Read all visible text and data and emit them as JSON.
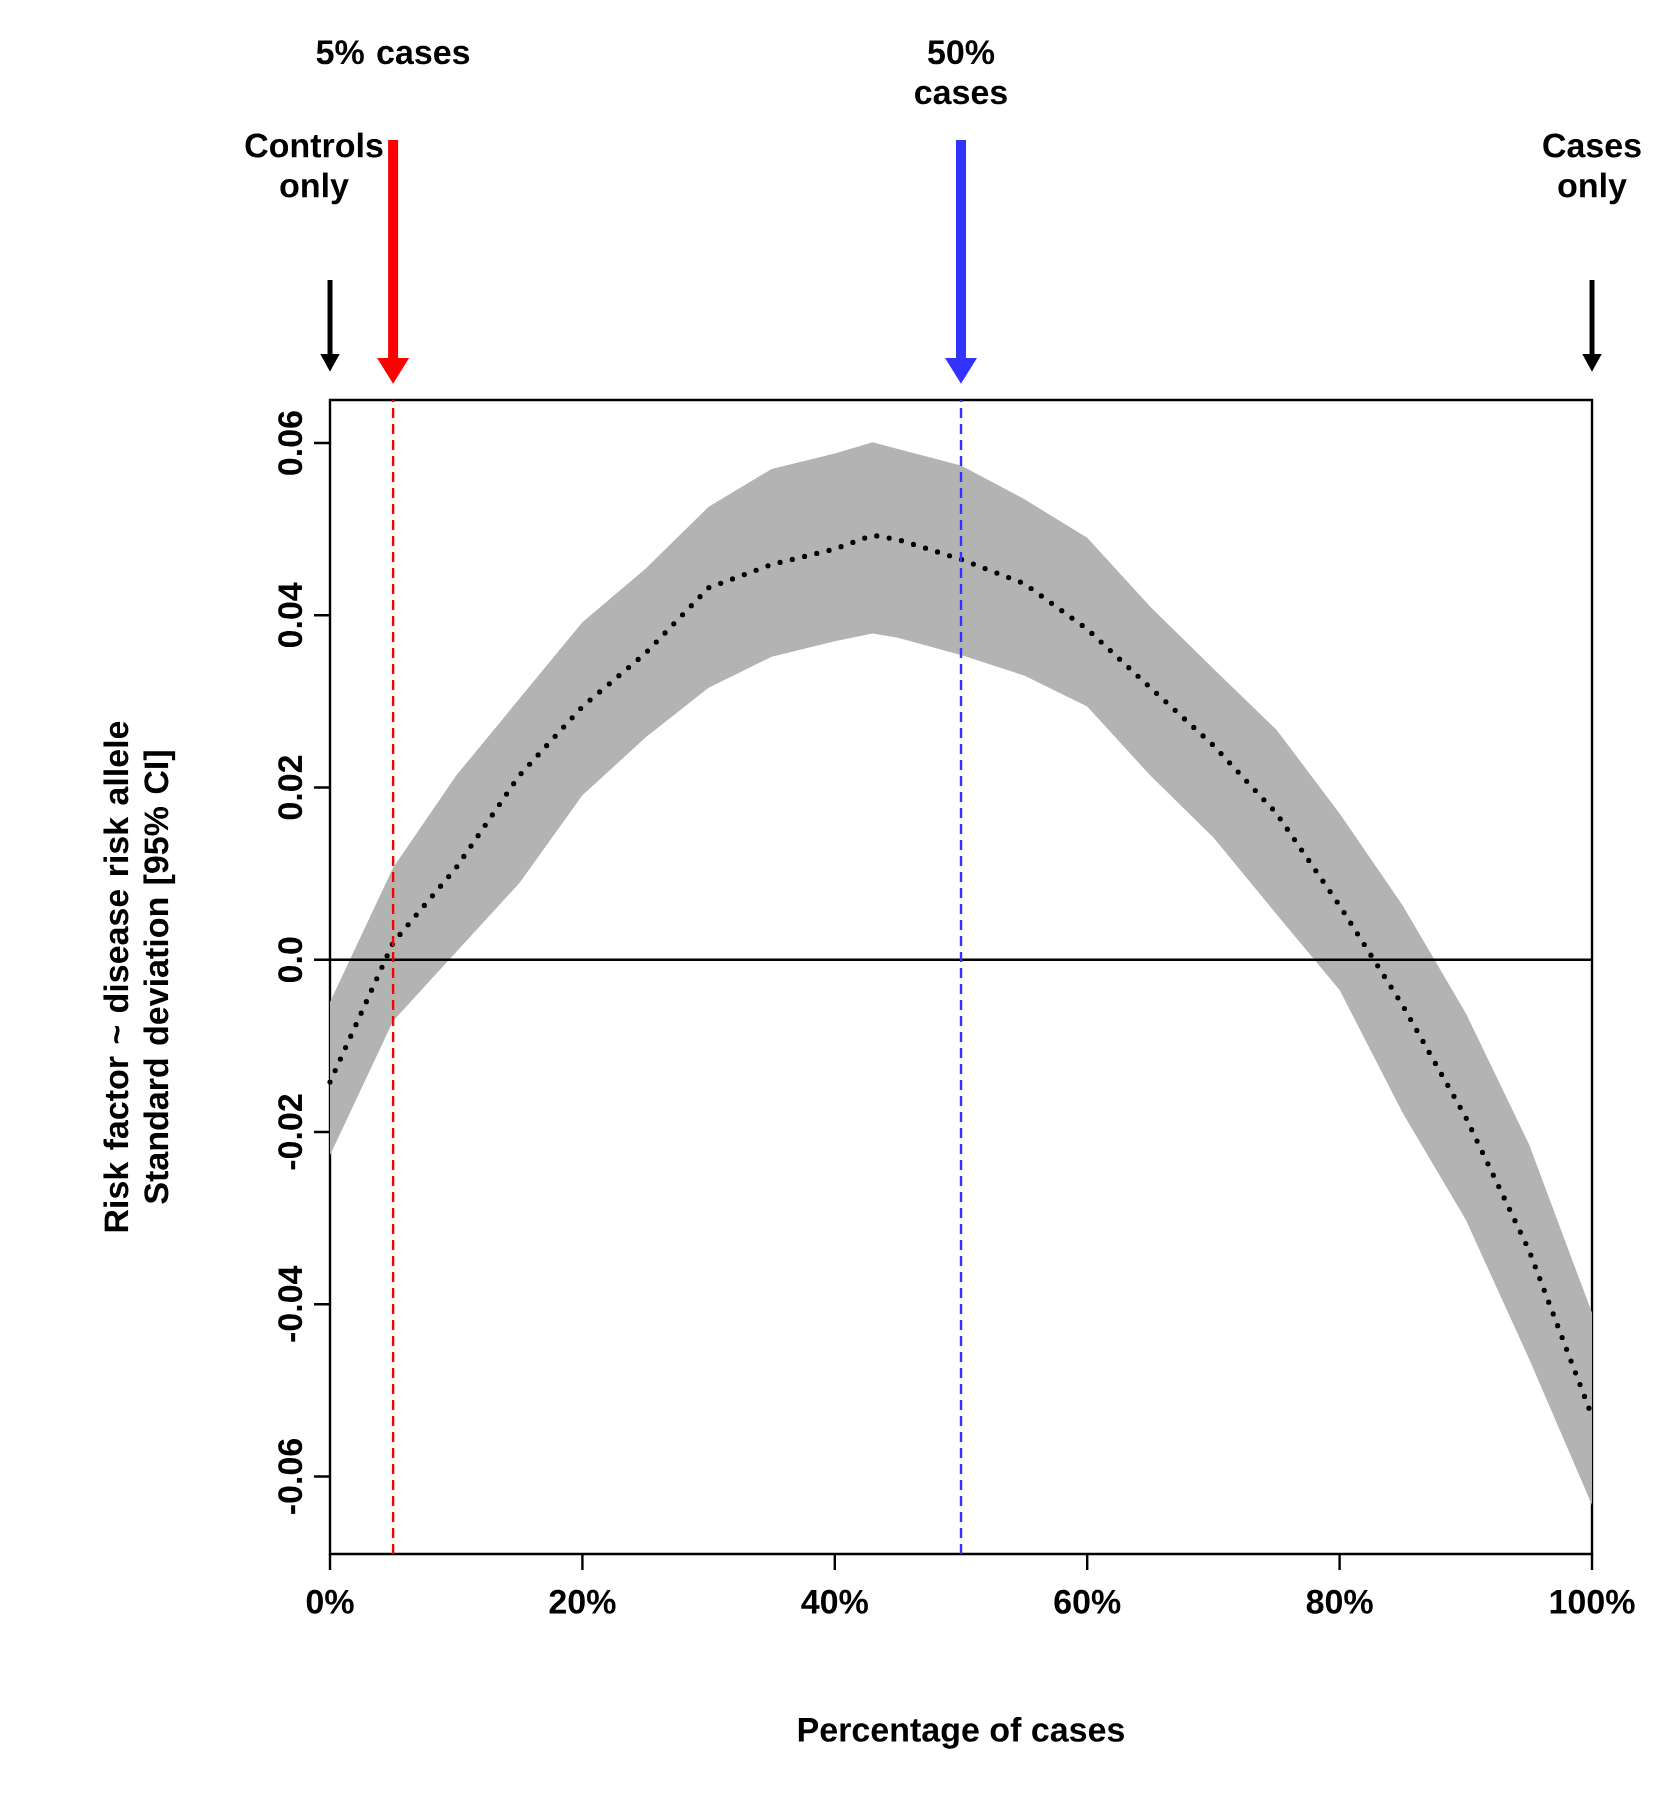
{
  "chart_data": {
    "type": "line",
    "xlabel": "Percentage of cases",
    "ylabel": "Risk factor ~ disease risk allele Standard deviation [95% CI]",
    "xlim": [
      0,
      100
    ],
    "ylim": [
      -0.069,
      0.065
    ],
    "xticks": [
      {
        "value": 0,
        "label": "0%"
      },
      {
        "value": 20,
        "label": "20%"
      },
      {
        "value": 40,
        "label": "40%"
      },
      {
        "value": 60,
        "label": "60%"
      },
      {
        "value": 80,
        "label": "80%"
      },
      {
        "value": 100,
        "label": "100%"
      }
    ],
    "yticks": [
      -0.06,
      -0.04,
      -0.02,
      {
        "value": 0,
        "label": "0.0"
      },
      0.02,
      0.04,
      0.06
    ],
    "x": [
      0,
      5,
      10,
      15,
      20,
      25,
      30,
      35,
      40,
      43,
      45,
      50,
      55,
      60,
      65,
      70,
      75,
      80,
      85,
      90,
      95,
      100
    ],
    "series": [
      {
        "color": "#000000",
        "line_style": "dotted",
        "values": [
          -0.0142,
          0.002,
          0.0107,
          0.0214,
          0.0294,
          0.0356,
          0.0432,
          0.0459,
          0.0477,
          0.0493,
          0.0488,
          0.0465,
          0.0437,
          0.0384,
          0.0316,
          0.0249,
          0.017,
          0.0063,
          -0.0053,
          -0.0183,
          -0.0337,
          -0.053
        ],
        "upper": [
          -0.0049,
          0.0107,
          0.0214,
          0.0303,
          0.0392,
          0.0454,
          0.0526,
          0.057,
          0.0588,
          0.0601,
          0.0593,
          0.0574,
          0.0535,
          0.049,
          0.041,
          0.0338,
          0.0267,
          0.017,
          0.0063,
          -0.0062,
          -0.0214,
          -0.041
        ],
        "lower": [
          -0.0227,
          -0.0071,
          0.0009,
          0.0089,
          0.0191,
          0.0258,
          0.0316,
          0.0352,
          0.037,
          0.0379,
          0.0374,
          0.0354,
          0.033,
          0.0294,
          0.0214,
          0.0142,
          0.0053,
          -0.0035,
          -0.0178,
          -0.0302,
          -0.0463,
          -0.0633
        ]
      }
    ],
    "ref_lines": [
      {
        "axis": "y",
        "value": 0,
        "color": "#000000",
        "line_style": "solid"
      },
      {
        "axis": "x",
        "value": 5,
        "color": "#ff0000",
        "line_style": "dashed"
      },
      {
        "axis": "x",
        "value": 50,
        "color": "#3333ff",
        "line_style": "dashed"
      }
    ],
    "annotations": [
      "5% cases",
      "50% cases",
      "Controls only",
      "Cases only"
    ]
  }
}
